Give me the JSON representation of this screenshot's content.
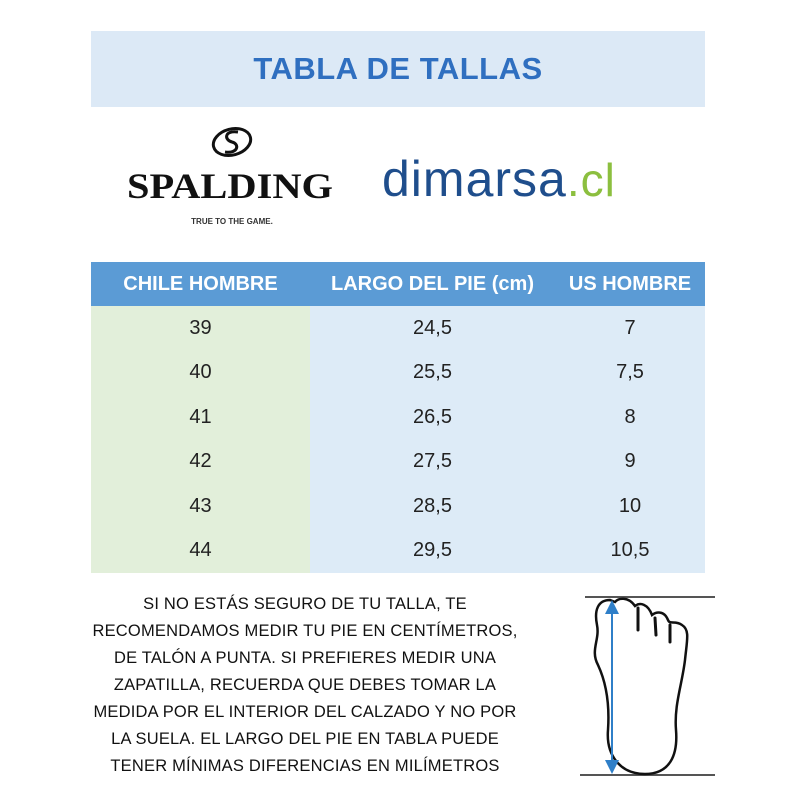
{
  "title": "TABLA DE TALLAS",
  "logos": {
    "spalding": {
      "name": "SPALDING",
      "tagline": "TRUE TO THE GAME."
    },
    "dimarsa": {
      "main": "dimarsa",
      "suffix": ".cl"
    }
  },
  "table": {
    "headers": [
      "CHILE HOMBRE",
      "LARGO DEL PIE (cm)",
      "US HOMBRE"
    ],
    "rows": [
      [
        "39",
        "24,5",
        "7"
      ],
      [
        "40",
        "25,5",
        "7,5"
      ],
      [
        "41",
        "26,5",
        "8"
      ],
      [
        "42",
        "27,5",
        "9"
      ],
      [
        "43",
        "28,5",
        "10"
      ],
      [
        "44",
        "29,5",
        "10,5"
      ]
    ]
  },
  "note": {
    "lines": [
      "SI NO ESTÁS SEGURO DE TU TALLA, TE",
      "RECOMENDAMOS MEDIR TU PIE EN CENTÍMETROS,",
      "DE TALÓN A PUNTA. SI PREFIERES MEDIR UNA",
      "ZAPATILLA, RECUERDA QUE DEBES TOMAR LA",
      "MEDIDA POR EL INTERIOR DEL CALZADO Y NO POR",
      "LA SUELA. EL LARGO DEL PIE EN TABLA PUEDE",
      "TENER MÍNIMAS DIFERENCIAS EN MILÍMETROS"
    ]
  },
  "colors": {
    "title_bg": "#dce9f6",
    "title_text": "#2f6fc0",
    "header_bg": "#5b9bd5",
    "col1_bg": "#e2efda",
    "col23_bg": "#ddebf7",
    "arrow": "#2f7fc8"
  },
  "icons": {
    "foot": "foot-measure-icon"
  }
}
